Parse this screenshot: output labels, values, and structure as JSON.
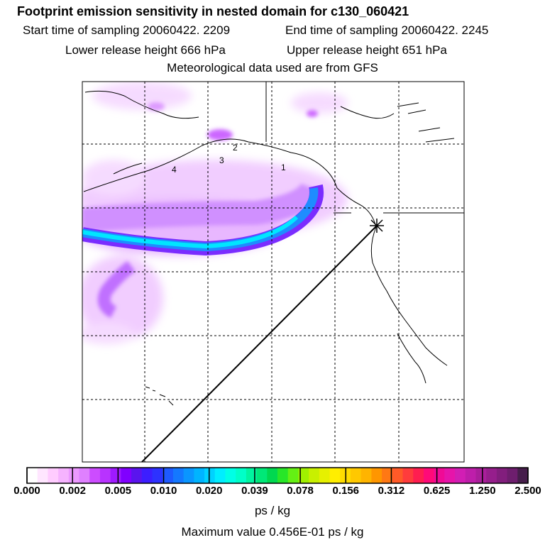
{
  "header": {
    "title": "Footprint emission sensitivity in nested domain for c130_060421",
    "start_label": "Start time of sampling 20060422.  2209",
    "end_label": "End time of sampling 20060422.  2245",
    "lower_label": "Lower release height  666 hPa",
    "upper_label": "Upper release height  651 hPa",
    "met_label": "Meteorological data used are from GFS"
  },
  "map": {
    "track_markers": [
      "1",
      "2",
      "3",
      "4"
    ]
  },
  "colorbar": {
    "tick_labels": [
      "0.000",
      "0.002",
      "0.005",
      "0.010",
      "0.020",
      "0.039",
      "0.078",
      "0.156",
      "0.312",
      "0.625",
      "1.250",
      "2.500"
    ],
    "units": "ps / kg",
    "max_value_text": "Maximum value  0.456E-01 ps / kg",
    "colors": [
      "#ffffff",
      "#ffe6ff",
      "#ffccff",
      "#f6b3ff",
      "#ec99ff",
      "#df80ff",
      "#cc4cff",
      "#b833ff",
      "#9f1aff",
      "#8000ff",
      "#5a14ee",
      "#3c1eff",
      "#2d32ff",
      "#1e5aff",
      "#1478ff",
      "#0a96ff",
      "#00b4ff",
      "#00d2ff",
      "#00eeff",
      "#00ffe6",
      "#00ffc8",
      "#00f5a0",
      "#00e878",
      "#00d850",
      "#28e628",
      "#64f014",
      "#a0f000",
      "#c8f000",
      "#e6f000",
      "#ffee00",
      "#ffdc00",
      "#ffc800",
      "#ffb400",
      "#ff9600",
      "#ff7814",
      "#ff5a28",
      "#ff3c3c",
      "#ff1e50",
      "#ff0a78",
      "#f00a96",
      "#e614aa",
      "#d21eb4",
      "#be1eaa",
      "#aa1e9b",
      "#961e8c",
      "#821e7d",
      "#6e1e6e",
      "#461e4b"
    ]
  }
}
